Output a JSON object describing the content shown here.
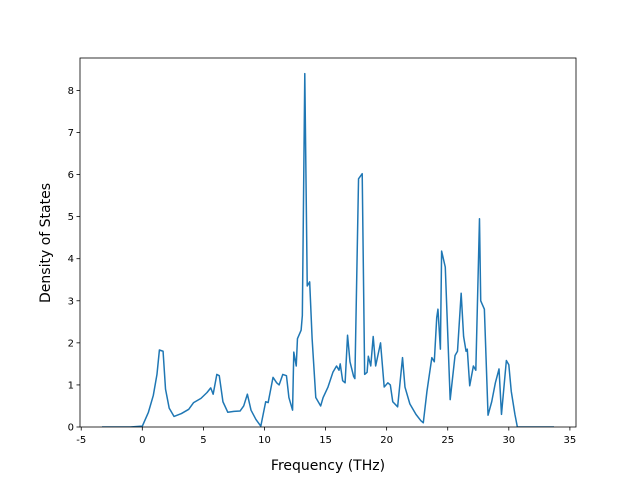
{
  "chart_data": {
    "type": "line",
    "xlabel": "Frequency (THz)",
    "ylabel": "Density of States",
    "color": "#1f77b4",
    "xlim": [
      -5.1,
      35.5
    ],
    "ylim": [
      0,
      8.77
    ],
    "xticks": [
      -5,
      0,
      5,
      10,
      15,
      20,
      25,
      30,
      35
    ],
    "yticks": [
      0,
      1,
      2,
      3,
      4,
      5,
      6,
      7,
      8
    ],
    "x": [
      -3.3,
      -1.0,
      0.0,
      0.5,
      0.9,
      1.2,
      1.4,
      1.7,
      1.9,
      2.2,
      2.6,
      3.2,
      3.8,
      4.2,
      4.8,
      5.3,
      5.6,
      5.8,
      6.1,
      6.3,
      6.6,
      7.0,
      7.5,
      8.0,
      8.3,
      8.6,
      8.9,
      9.3,
      9.7,
      10.1,
      10.3,
      10.7,
      11.0,
      11.2,
      11.5,
      11.8,
      12.0,
      12.3,
      12.4,
      12.6,
      12.7,
      13.0,
      13.1,
      13.3,
      13.5,
      13.7,
      13.9,
      14.2,
      14.6,
      14.8,
      15.2,
      15.6,
      15.9,
      16.1,
      16.2,
      16.4,
      16.6,
      16.8,
      17.0,
      17.3,
      17.4,
      17.7,
      18.0,
      18.2,
      18.4,
      18.5,
      18.7,
      18.9,
      19.1,
      19.5,
      19.8,
      20.1,
      20.3,
      20.5,
      20.9,
      21.3,
      21.5,
      21.9,
      22.4,
      22.8,
      23.0,
      23.3,
      23.7,
      23.9,
      24.1,
      24.2,
      24.4,
      24.5,
      24.8,
      25.2,
      25.6,
      25.8,
      26.1,
      26.3,
      26.5,
      26.6,
      26.8,
      27.1,
      27.3,
      27.6,
      27.7,
      28.0,
      28.3,
      28.6,
      28.9,
      29.2,
      29.4,
      29.8,
      30.0,
      30.2,
      30.5,
      30.7,
      32.0,
      33.7
    ],
    "values": [
      0,
      0,
      0.02,
      0.35,
      0.75,
      1.25,
      1.83,
      1.8,
      0.9,
      0.45,
      0.25,
      0.32,
      0.42,
      0.58,
      0.68,
      0.82,
      0.93,
      0.78,
      1.25,
      1.22,
      0.6,
      0.35,
      0.37,
      0.38,
      0.5,
      0.78,
      0.4,
      0.18,
      0.02,
      0.6,
      0.58,
      1.18,
      1.05,
      1.0,
      1.25,
      1.22,
      0.7,
      0.4,
      1.78,
      1.45,
      2.1,
      2.3,
      2.65,
      8.4,
      3.35,
      3.45,
      2.1,
      0.7,
      0.5,
      0.7,
      0.95,
      1.3,
      1.45,
      1.35,
      1.5,
      1.1,
      1.05,
      2.18,
      1.55,
      1.2,
      1.15,
      5.9,
      6.02,
      1.25,
      1.3,
      1.68,
      1.45,
      2.15,
      1.45,
      2.0,
      0.95,
      1.05,
      1.0,
      0.6,
      0.48,
      1.65,
      0.95,
      0.55,
      0.3,
      0.15,
      0.1,
      0.85,
      1.65,
      1.55,
      2.6,
      2.8,
      1.85,
      4.18,
      3.8,
      0.65,
      1.7,
      1.8,
      3.18,
      2.15,
      1.8,
      1.85,
      0.98,
      1.45,
      1.35,
      4.95,
      3.0,
      2.8,
      0.28,
      0.6,
      1.05,
      1.38,
      0.3,
      1.58,
      1.48,
      0.85,
      0.3,
      0,
      0,
      0
    ]
  }
}
